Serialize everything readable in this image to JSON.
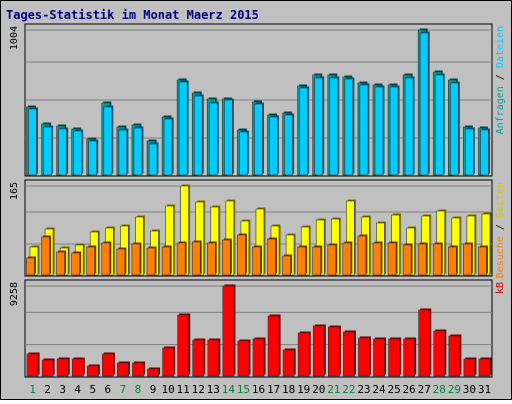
{
  "title": "Tages-Statistik im Monat Maerz 2015",
  "colors": {
    "frame_bg": "#c0c0c0",
    "plot_bg": "#c0c0c0",
    "title": "#000080",
    "grid": "#808080",
    "anfragen": "#00a0a0",
    "dateien": "#00ccff",
    "seiten": "#d4c800",
    "besuche": "#ff8000",
    "kb": "#e00000",
    "weekend_label": "#008040",
    "weekday_label": "#000000",
    "slash": "#000000"
  },
  "chart_data": [
    {
      "type": "bar",
      "name": "top",
      "ymax_label": "1004",
      "ylim": [
        0,
        1004
      ],
      "grid": true,
      "right_label_parts": [
        {
          "text": "Anfragen",
          "color_key": "anfragen"
        },
        {
          "text": " / ",
          "color_key": "slash"
        },
        {
          "text": "Dateien",
          "color_key": "dateien"
        }
      ],
      "categories": [
        "1",
        "2",
        "3",
        "4",
        "5",
        "6",
        "7",
        "8",
        "9",
        "10",
        "11",
        "12",
        "13",
        "14",
        "15",
        "16",
        "17",
        "18",
        "19",
        "20",
        "21",
        "22",
        "23",
        "24",
        "25",
        "26",
        "27",
        "28",
        "29",
        "30",
        "31"
      ],
      "series": [
        {
          "name": "Anfragen",
          "color_key": "anfragen",
          "values": [
            470,
            350,
            336,
            320,
            250,
            500,
            330,
            345,
            235,
            400,
            660,
            570,
            525,
            525,
            310,
            505,
            415,
            430,
            615,
            690,
            690,
            680,
            640,
            625,
            625,
            690,
            1004,
            715,
            655,
            335,
            325
          ]
        },
        {
          "name": "Dateien",
          "color_key": "dateien",
          "values": [
            455,
            335,
            320,
            305,
            235,
            470,
            310,
            325,
            215,
            385,
            645,
            545,
            500,
            520,
            295,
            490,
            400,
            415,
            600,
            675,
            675,
            665,
            625,
            610,
            610,
            675,
            985,
            690,
            640,
            320,
            310
          ]
        }
      ]
    },
    {
      "type": "bar",
      "name": "middle",
      "ymax_label": "165",
      "ylim": [
        0,
        165
      ],
      "grid": true,
      "right_label_parts": [
        {
          "text": "Besuche",
          "color_key": "besuche"
        },
        {
          "text": " / ",
          "color_key": "slash"
        },
        {
          "text": "Seiten",
          "color_key": "seiten"
        }
      ],
      "categories": [
        "1",
        "2",
        "3",
        "4",
        "5",
        "6",
        "7",
        "8",
        "9",
        "10",
        "11",
        "12",
        "13",
        "14",
        "15",
        "16",
        "17",
        "18",
        "19",
        "20",
        "21",
        "22",
        "23",
        "24",
        "25",
        "26",
        "27",
        "28",
        "29",
        "30",
        "31"
      ],
      "series": [
        {
          "name": "Seiten",
          "color_key": "seiten",
          "values": [
            52,
            85,
            50,
            56,
            79,
            88,
            91,
            108,
            81,
            128,
            165,
            135,
            126,
            138,
            100,
            123,
            91,
            75,
            89,
            102,
            104,
            138,
            107,
            96,
            112,
            87,
            110,
            118,
            106,
            110,
            114
          ]
        },
        {
          "name": "Besuche",
          "color_key": "besuche",
          "values": [
            31,
            71,
            43,
            40,
            52,
            60,
            48,
            58,
            50,
            51,
            60,
            62,
            60,
            65,
            75,
            51,
            67,
            36,
            51,
            51,
            55,
            60,
            72,
            59,
            59,
            56,
            57,
            57,
            52,
            58,
            51
          ]
        }
      ]
    },
    {
      "type": "bar",
      "name": "bottom",
      "ymax_label": "9258",
      "ylim": [
        0,
        9258
      ],
      "grid": true,
      "right_label_parts": [
        {
          "text": "kB",
          "color_key": "kb"
        }
      ],
      "categories": [
        "1",
        "2",
        "3",
        "4",
        "5",
        "6",
        "7",
        "8",
        "9",
        "10",
        "11",
        "12",
        "13",
        "14",
        "15",
        "16",
        "17",
        "18",
        "19",
        "20",
        "21",
        "22",
        "23",
        "24",
        "25",
        "26",
        "27",
        "28",
        "29",
        "30",
        "31"
      ],
      "series": [
        {
          "name": "kB",
          "color_key": "kb",
          "values": [
            2300,
            1650,
            1790,
            1790,
            1000,
            2300,
            1300,
            1300,
            750,
            2850,
            6280,
            3700,
            3700,
            9258,
            3580,
            3790,
            6130,
            2720,
            4390,
            5130,
            5000,
            4510,
            3950,
            3800,
            3770,
            3790,
            6790,
            4600,
            4110,
            1700,
            1700
          ]
        }
      ]
    }
  ],
  "weekend_days": [
    "1",
    "7",
    "8",
    "14",
    "15",
    "21",
    "22",
    "28",
    "29"
  ]
}
